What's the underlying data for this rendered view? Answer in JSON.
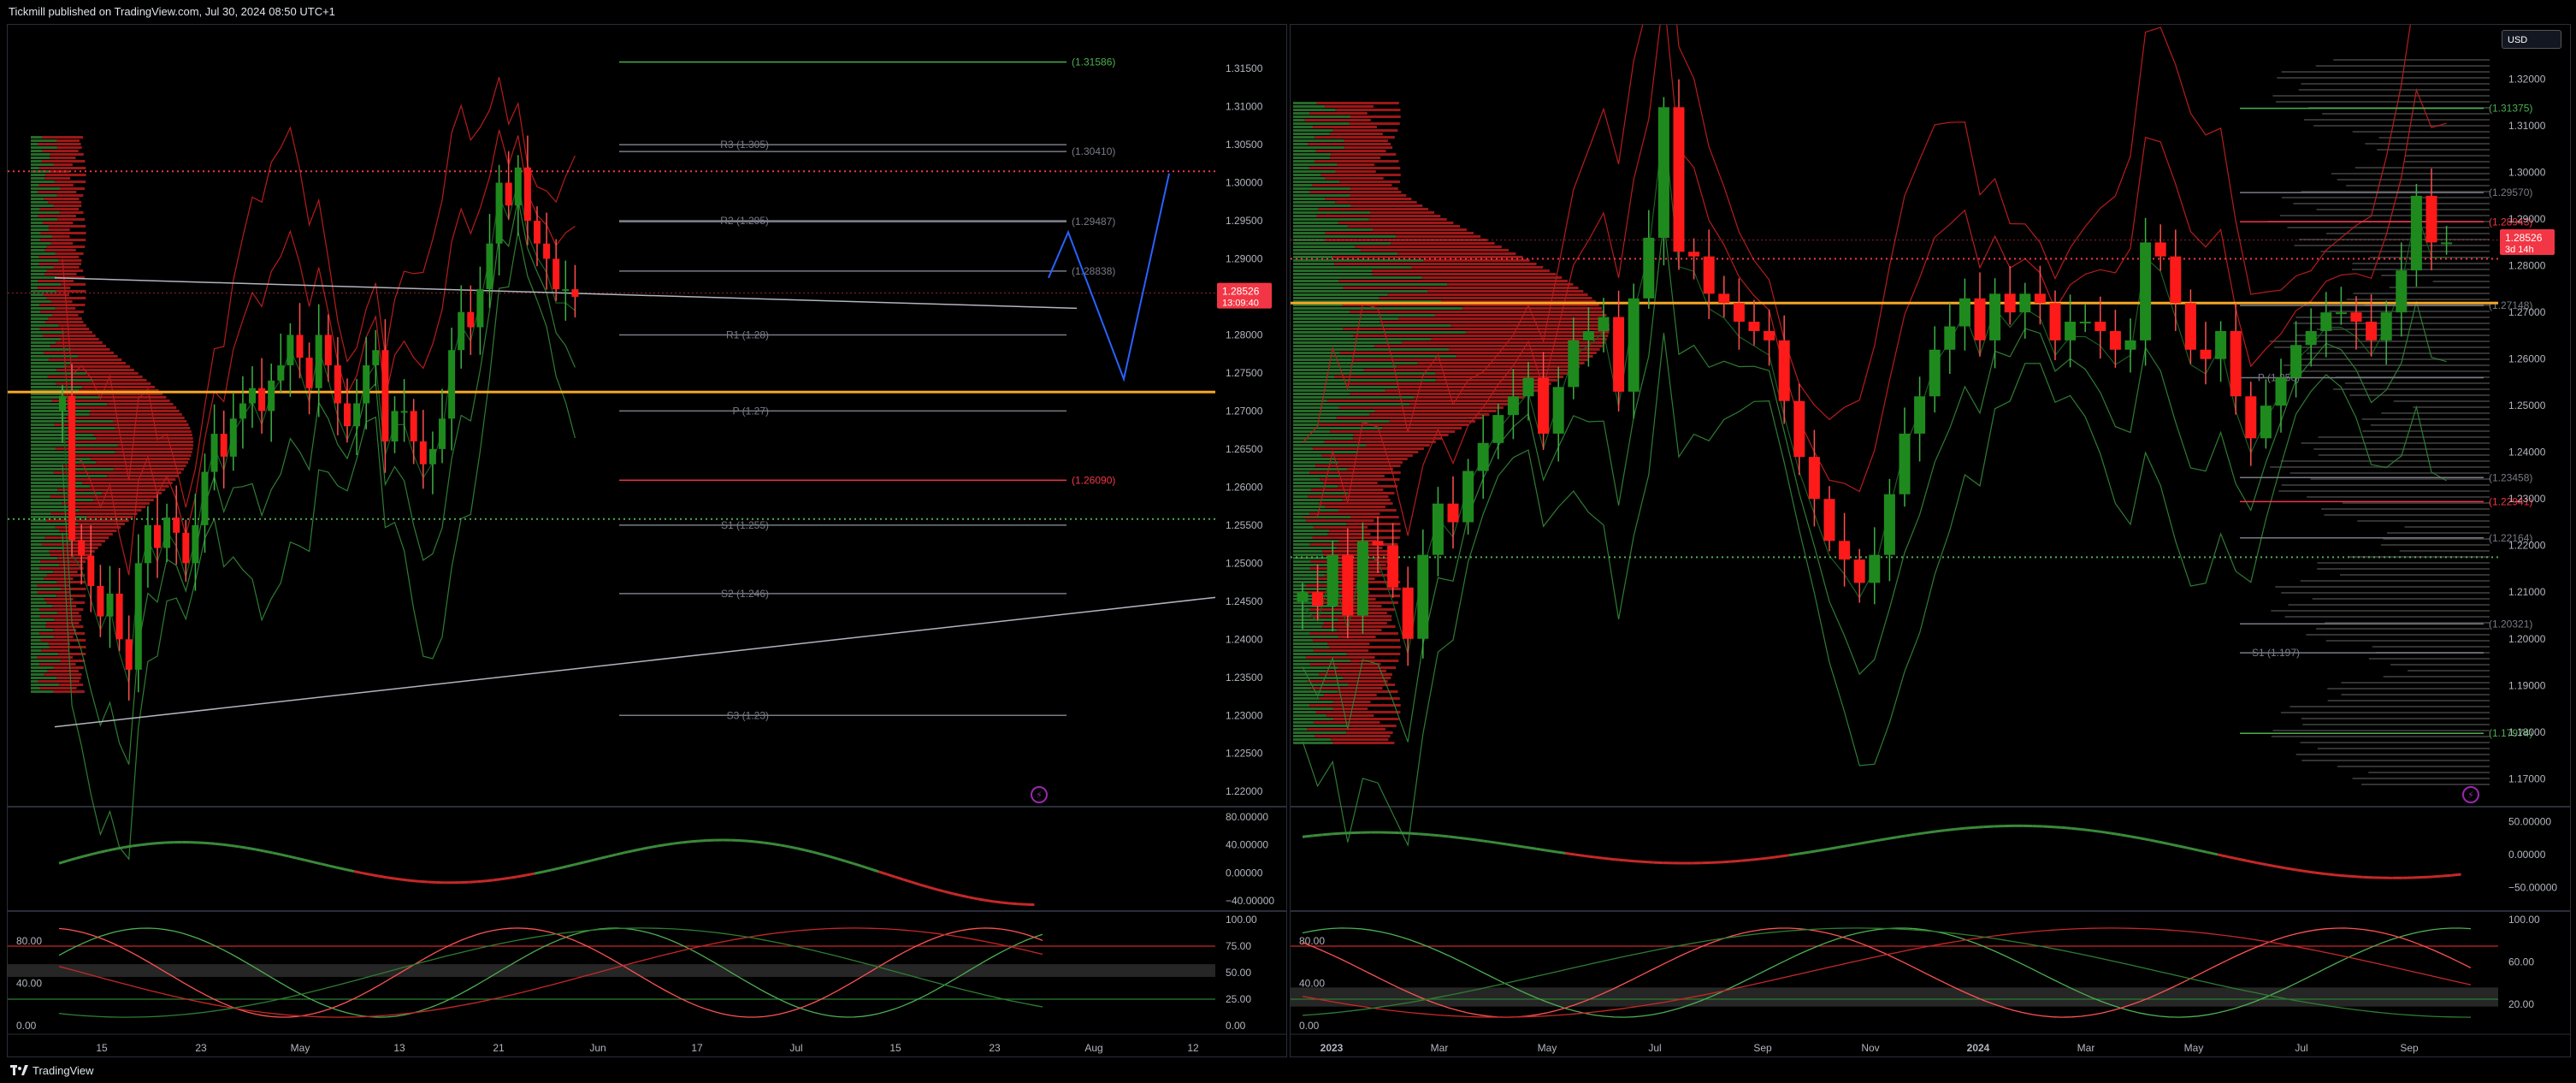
{
  "header": {
    "text": "Tickmill published on TradingView.com, Jul 30, 2024 08:50 UTC+1"
  },
  "footer": {
    "brand": "TradingView"
  },
  "colors": {
    "bull": "#1e8a1e",
    "bear": "#ff1a1a",
    "poc": "#f5a623",
    "price_badge": "#f23645",
    "pivot_line": "#787b86",
    "bb_upper": "#b71c1c",
    "bb_lower": "#2e7d32"
  },
  "chart_data": [
    {
      "type": "line",
      "panel": "left",
      "timeframe": "Daily",
      "price_axis": {
        "ticks": [
          "1.31500",
          "1.31000",
          "1.30500",
          "1.30000",
          "1.29500",
          "1.29000",
          "1.28500",
          "1.28000",
          "1.27500",
          "1.27000",
          "1.26500",
          "1.26000",
          "1.25500",
          "1.25000",
          "1.24500",
          "1.24000",
          "1.23500",
          "1.23000",
          "1.22500",
          "1.22000"
        ],
        "range": [
          1.218,
          1.3185
        ]
      },
      "time_axis": {
        "ticks": [
          "15",
          "23",
          "May",
          "13",
          "21",
          "Jun",
          "17",
          "Jul",
          "15",
          "23",
          "Aug",
          "12"
        ]
      },
      "current_price": {
        "value": "1.28526",
        "countdown": "13:09:40"
      },
      "series": [
        {
          "values": [
            1.272,
            1.253,
            1.251,
            1.247,
            1.243,
            1.246,
            1.24,
            1.236,
            1.25,
            1.255,
            1.252,
            1.256,
            1.254,
            1.25,
            1.255,
            1.262,
            1.267,
            1.264,
            1.269,
            1.271,
            1.273,
            1.27,
            1.274,
            1.276,
            1.28,
            1.277,
            1.273,
            1.28,
            1.276,
            1.271,
            1.268,
            1.271,
            1.276,
            1.278,
            1.266,
            1.27,
            1.27,
            1.266,
            1.263,
            1.265,
            1.269,
            1.278,
            1.283,
            1.281,
            1.286,
            1.292,
            1.3,
            1.297,
            1.302,
            1.295,
            1.292,
            1.29,
            1.286,
            1.286,
            1.285
          ]
        }
      ],
      "levels": [
        {
          "label": "(1.31586)",
          "value": 1.31586,
          "color": "#4caf50"
        },
        {
          "label": "R3 (1.305)",
          "value": 1.305,
          "color": "#787b86"
        },
        {
          "label": "(1.30410)",
          "value": 1.3041,
          "color": "#787b86"
        },
        {
          "label": "R2 (1.295)",
          "value": 1.295,
          "color": "#787b86"
        },
        {
          "label": "(1.29487)",
          "value": 1.29487,
          "color": "#787b86"
        },
        {
          "label": "(1.28838)",
          "value": 1.28838,
          "color": "#787b86"
        },
        {
          "label": "R1 (1.28)",
          "value": 1.28,
          "color": "#787b86"
        },
        {
          "label": "P (1.27)",
          "value": 1.27,
          "color": "#787b86"
        },
        {
          "label": "(1.26090)",
          "value": 1.2609,
          "color": "#f23645"
        },
        {
          "label": "S1 (1.255)",
          "value": 1.255,
          "color": "#787b86"
        },
        {
          "label": "S2 (1.246)",
          "value": 1.246,
          "color": "#787b86"
        },
        {
          "label": "S3 (1.23)",
          "value": 1.23,
          "color": "#787b86"
        }
      ],
      "osc1": {
        "ticks": [
          "80.00000",
          "40.00000",
          "0.00000",
          "−40.00000"
        ],
        "range": [
          -45,
          85
        ]
      },
      "osc2": {
        "left_ticks": [
          "80.00",
          "40.00",
          "0.00"
        ],
        "right_ticks": [
          "100.00",
          "75.00",
          "50.00",
          "25.00",
          "0.00"
        ]
      }
    },
    {
      "type": "line",
      "panel": "right",
      "timeframe": "Weekly",
      "currency_button": "USD",
      "price_axis": {
        "ticks": [
          "1.32000",
          "1.31000",
          "1.30000",
          "1.29000",
          "1.28000",
          "1.27000",
          "1.26000",
          "1.25000",
          "1.24000",
          "1.23000",
          "1.22000",
          "1.21000",
          "1.20000",
          "1.19000",
          "1.18000",
          "1.17000"
        ],
        "range": [
          1.164,
          1.328
        ]
      },
      "time_axis": {
        "ticks": [
          "2023",
          "Mar",
          "May",
          "Jul",
          "Sep",
          "Nov",
          "2024",
          "Mar",
          "May",
          "Jul",
          "Sep"
        ]
      },
      "current_price": {
        "value": "1.28526",
        "countdown": "3d 14h"
      },
      "series": [
        {
          "values": [
            1.21,
            1.207,
            1.218,
            1.205,
            1.221,
            1.22,
            1.211,
            1.2,
            1.218,
            1.229,
            1.225,
            1.236,
            1.242,
            1.248,
            1.252,
            1.256,
            1.244,
            1.254,
            1.264,
            1.266,
            1.269,
            1.253,
            1.273,
            1.286,
            1.314,
            1.283,
            1.282,
            1.274,
            1.272,
            1.268,
            1.266,
            1.264,
            1.251,
            1.239,
            1.23,
            1.221,
            1.217,
            1.212,
            1.218,
            1.231,
            1.244,
            1.252,
            1.262,
            1.267,
            1.273,
            1.264,
            1.274,
            1.27,
            1.274,
            1.272,
            1.264,
            1.268,
            1.268,
            1.266,
            1.262,
            1.264,
            1.285,
            1.282,
            1.272,
            1.262,
            1.26,
            1.266,
            1.252,
            1.243,
            1.25,
            1.256,
            1.263,
            1.266,
            1.27,
            1.27,
            1.268,
            1.264,
            1.27,
            1.279,
            1.295,
            1.285,
            1.285
          ]
        }
      ],
      "levels": [
        {
          "label": "(1.31375)",
          "value": 1.31375,
          "color": "#4caf50"
        },
        {
          "label": "(1.29570)",
          "value": 1.2957,
          "color": "#787b86"
        },
        {
          "label": "(1.28943)",
          "value": 1.28943,
          "color": "#f23645"
        },
        {
          "label": "(1.27148)",
          "value": 1.27148,
          "color": "#787b86"
        },
        {
          "label": "P (1.256)",
          "value": 1.256,
          "color": "#787b86"
        },
        {
          "label": "(1.23458)",
          "value": 1.23458,
          "color": "#787b86"
        },
        {
          "label": "(1.22941)",
          "value": 1.22941,
          "color": "#f23645"
        },
        {
          "label": "(1.22164)",
          "value": 1.22164,
          "color": "#787b86"
        },
        {
          "label": "(1.20321)",
          "value": 1.20321,
          "color": "#787b86"
        },
        {
          "label": "S1 (1.197)",
          "value": 1.197,
          "color": "#787b86"
        },
        {
          "label": "(1.17974)",
          "value": 1.17974,
          "color": "#4caf50"
        }
      ],
      "osc1": {
        "ticks": [
          "50.00000",
          "0.00000",
          "−50.00000"
        ],
        "range": [
          -75,
          62
        ]
      },
      "osc2": {
        "left_ticks": [
          "80.00",
          "40.00",
          "0.00"
        ],
        "right_ticks": [
          "100.00",
          "60.00",
          "20.00"
        ]
      }
    }
  ]
}
